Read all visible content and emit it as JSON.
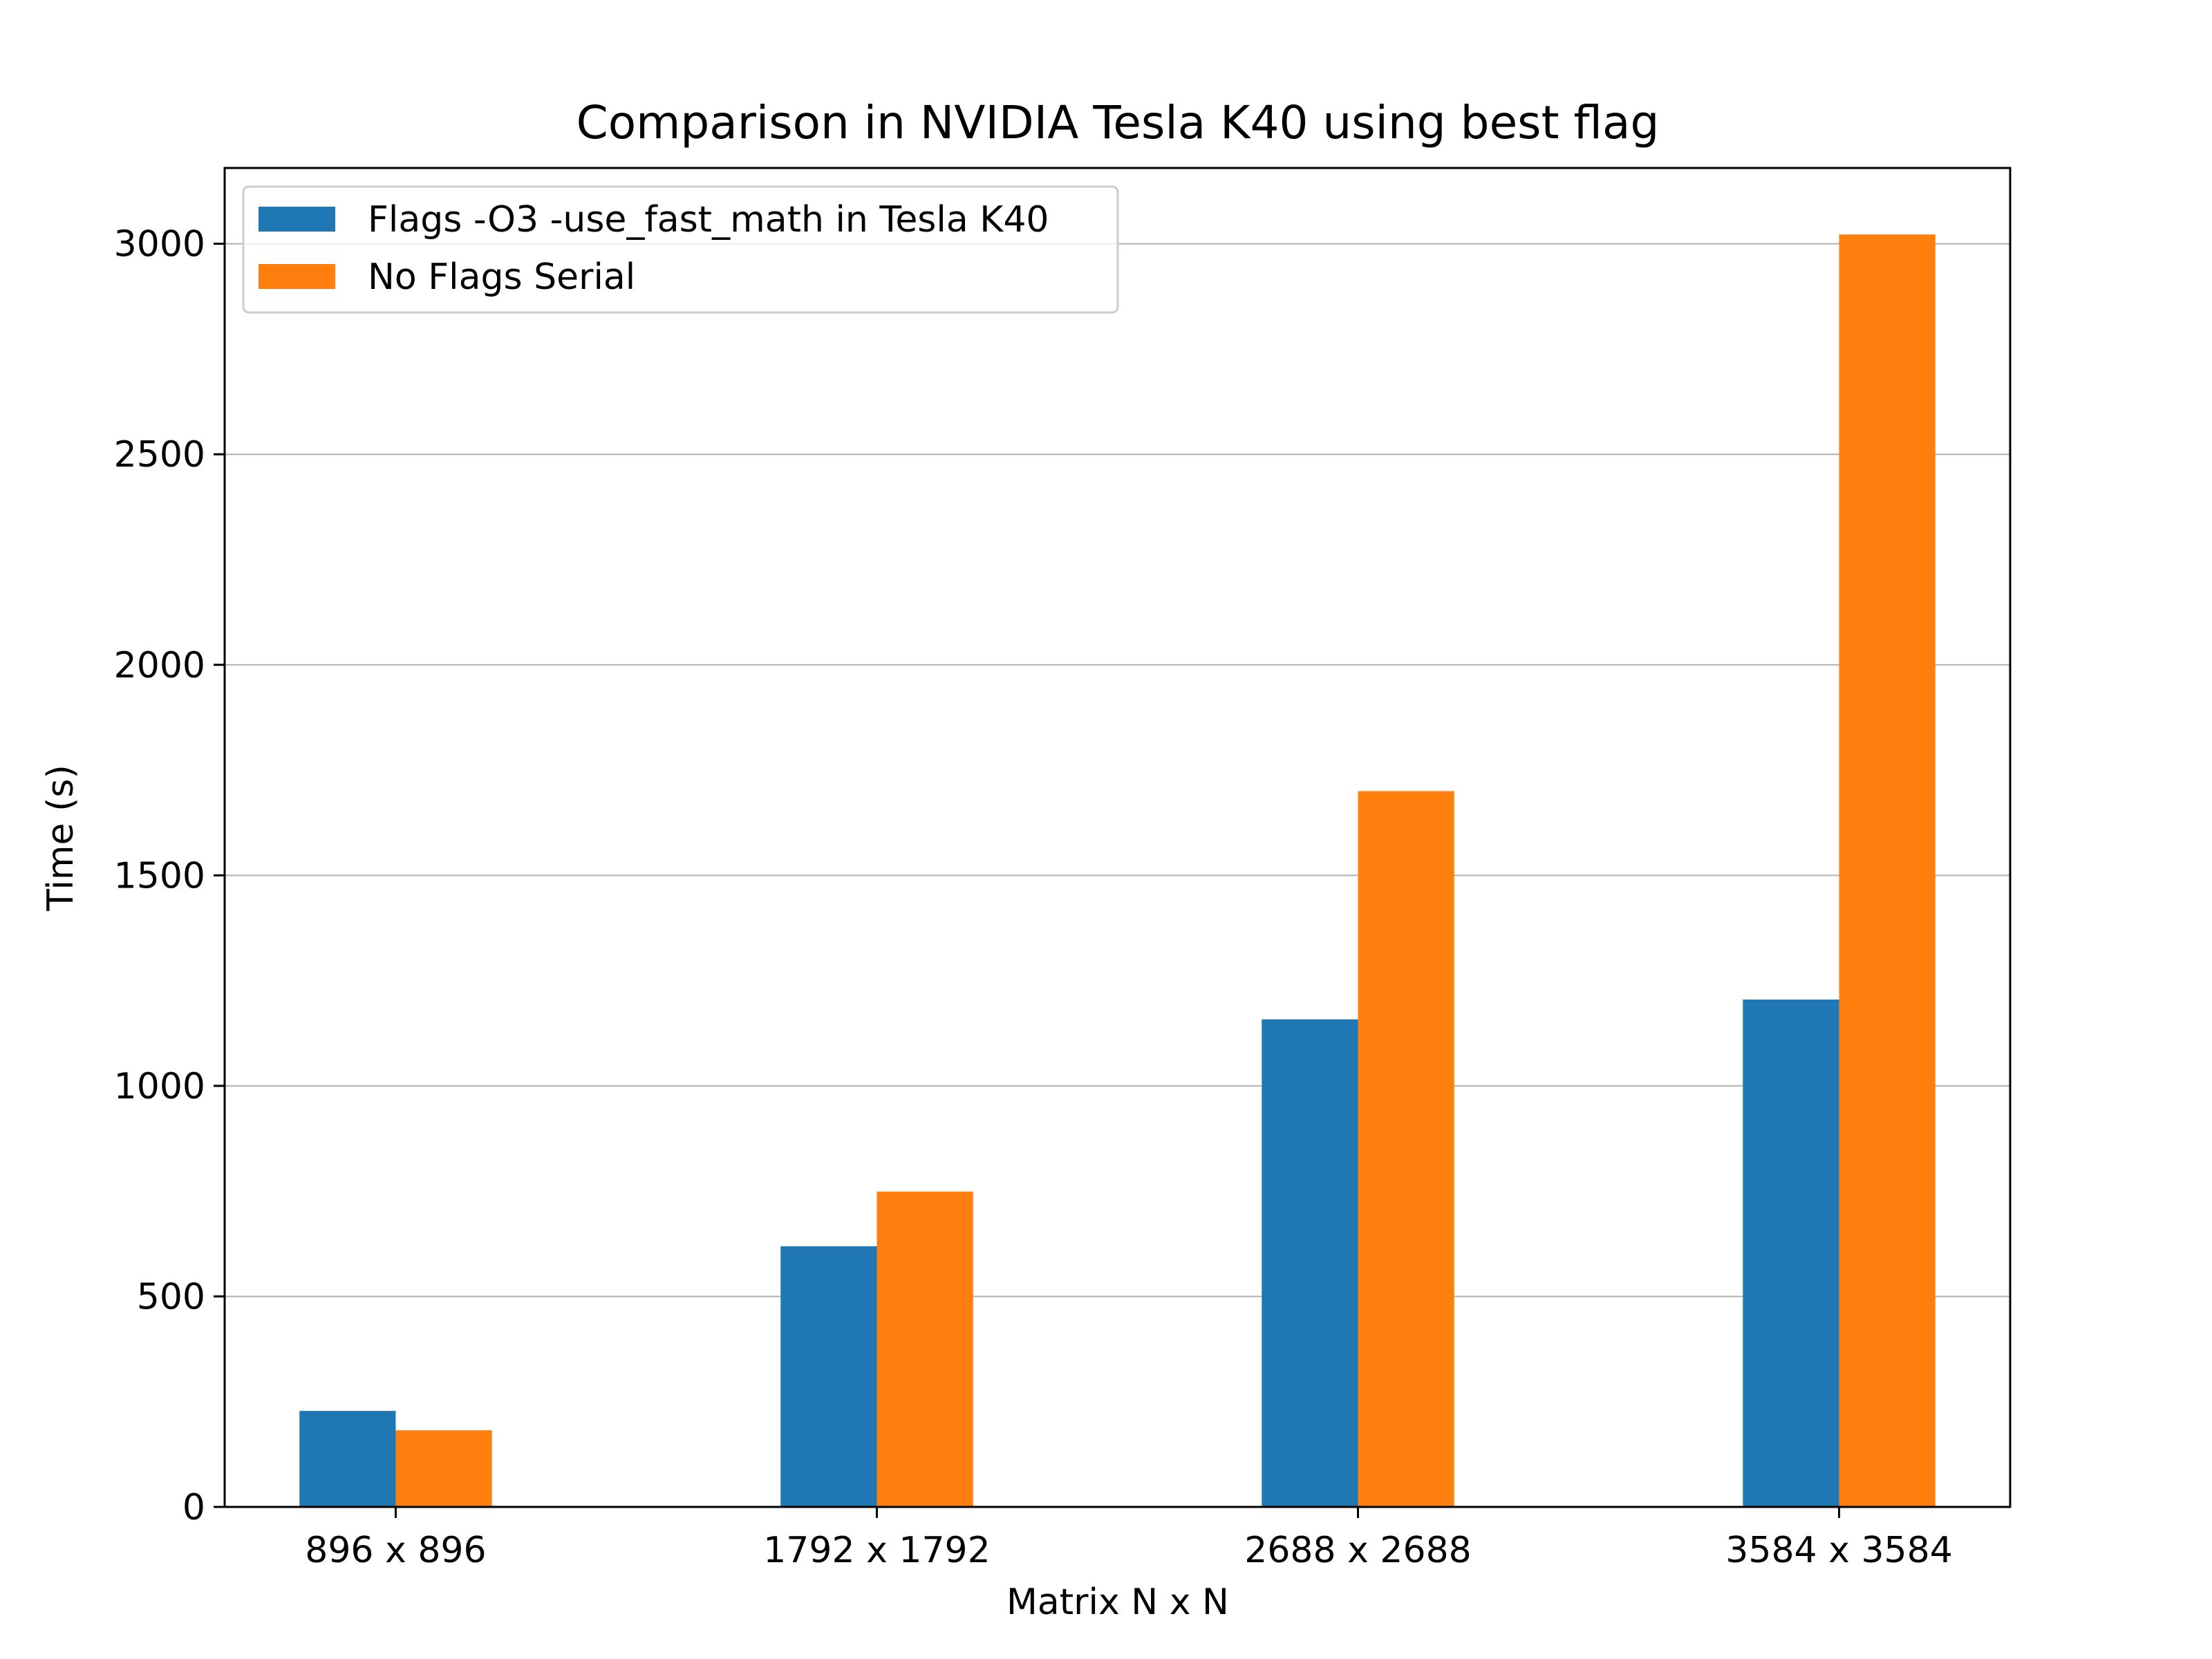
{
  "chart_data": {
    "type": "bar",
    "title": "Comparison in NVIDIA Tesla K40 using best flag",
    "xlabel": "Matrix N x N",
    "ylabel": "Time (s)",
    "categories": [
      "896 x 896",
      "1792 x 1792",
      "2688 x 2688",
      "3584 x 3584"
    ],
    "series": [
      {
        "name": "Flags -O3 -use_fast_math in Tesla K40",
        "values": [
          228,
          619,
          1158,
          1205
        ],
        "color": "#1f77b4"
      },
      {
        "name": "No Flags Serial",
        "values": [
          182,
          749,
          1700,
          3022
        ],
        "color": "#ff7f0e"
      }
    ],
    "ylim": [
      0,
      3180
    ],
    "yticks": [
      0,
      500,
      1000,
      1500,
      2000,
      2500,
      3000
    ],
    "grid": "horizontal",
    "legend_position": "top-left"
  }
}
